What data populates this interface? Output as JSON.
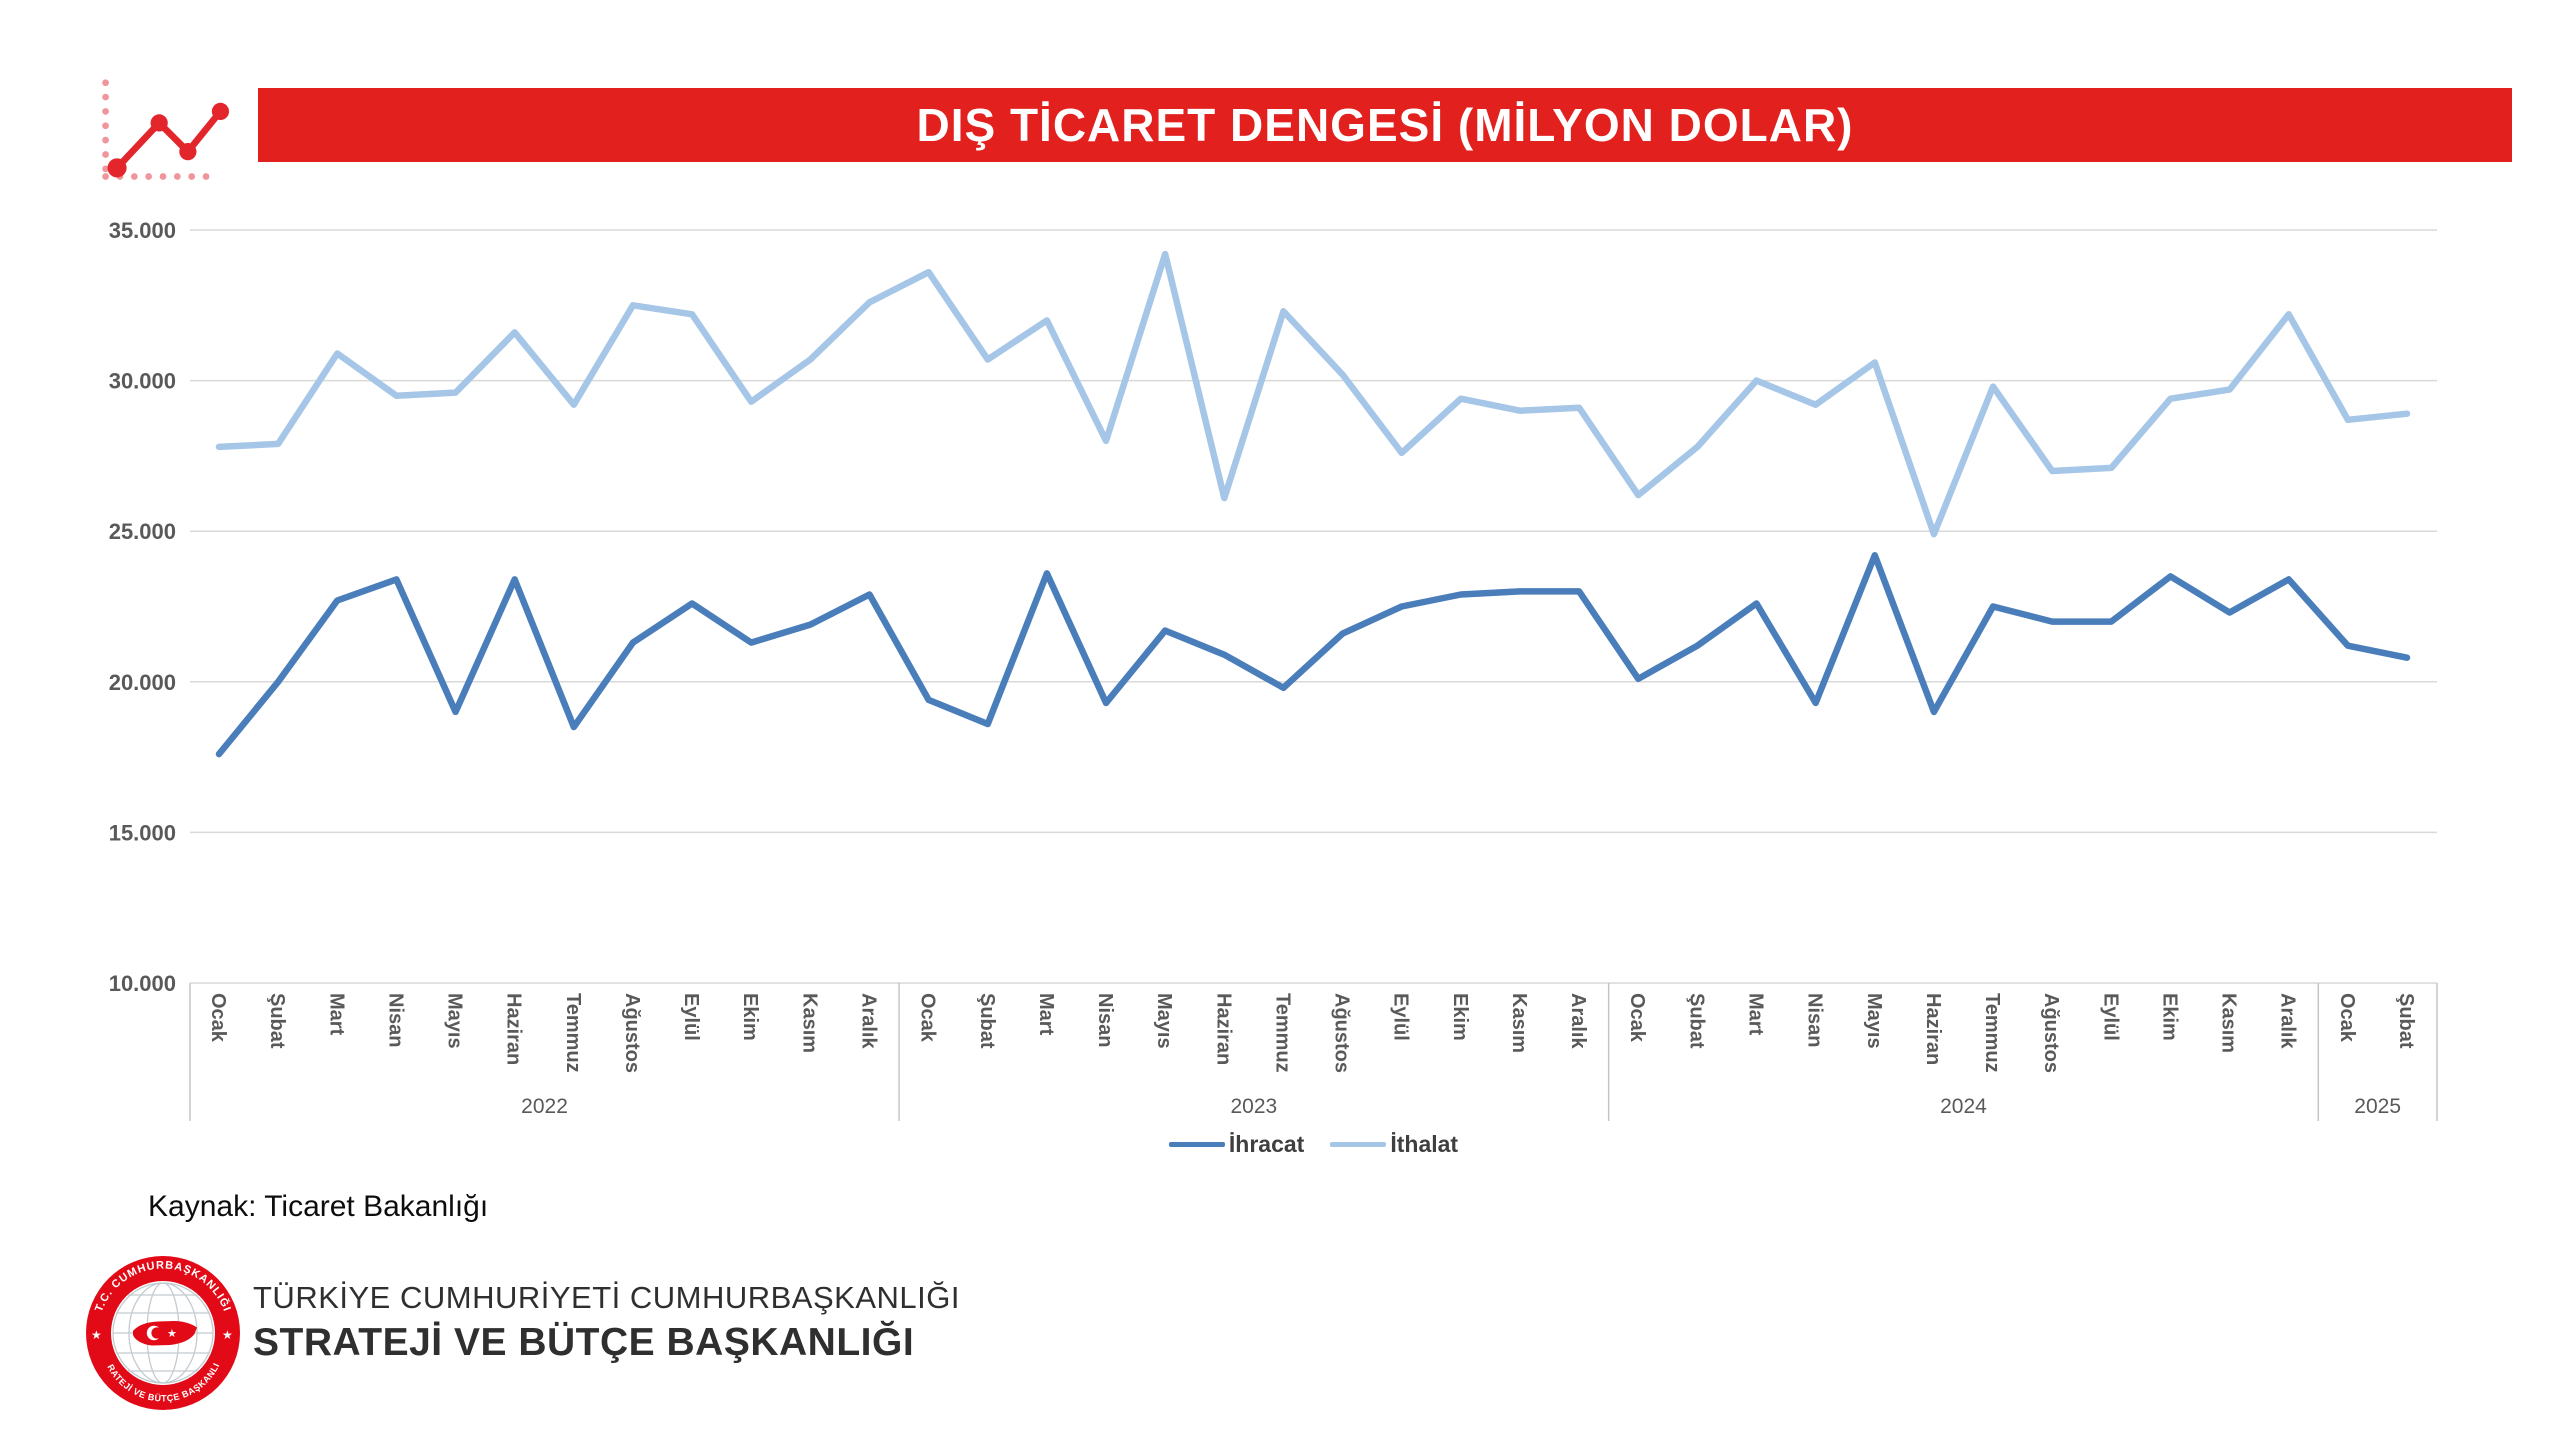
{
  "header": {
    "title": "DIŞ TİCARET DENGESİ (MİLYON DOLAR)",
    "banner_color": "#e2201d",
    "icon": {
      "name": "line-chart-logo-icon",
      "line_color": "#e2262c",
      "dot_color": "#f0959b"
    }
  },
  "chart_data": {
    "type": "line",
    "title": "DIŞ TİCARET DENGESİ (MİLYON DOLAR)",
    "unit": "milyon dolar",
    "grid": true,
    "legend_position": "bottom",
    "y_axis": {
      "min": 10000,
      "max": 35000,
      "step": 5000,
      "ticks": [
        {
          "label": "35.000",
          "value": 35000
        },
        {
          "label": "30.000",
          "value": 30000
        },
        {
          "label": "25.000",
          "value": 25000
        },
        {
          "label": "20.000",
          "value": 20000
        },
        {
          "label": "15.000",
          "value": 15000
        },
        {
          "label": "10.000",
          "value": 10000
        }
      ]
    },
    "years": [
      {
        "label": "2022",
        "months": [
          "Ocak",
          "Şubat",
          "Mart",
          "Nisan",
          "Mayıs",
          "Haziran",
          "Temmuz",
          "Ağustos",
          "Eylül",
          "Ekim",
          "Kasım",
          "Aralık"
        ]
      },
      {
        "label": "2023",
        "months": [
          "Ocak",
          "Şubat",
          "Mart",
          "Nisan",
          "Mayıs",
          "Haziran",
          "Temmuz",
          "Ağustos",
          "Eylül",
          "Ekim",
          "Kasım",
          "Aralık"
        ]
      },
      {
        "label": "2024",
        "months": [
          "Ocak",
          "Şubat",
          "Mart",
          "Nisan",
          "Mayıs",
          "Haziran",
          "Temmuz",
          "Ağustos",
          "Eylül",
          "Ekim",
          "Kasım",
          "Aralık"
        ]
      },
      {
        "label": "2025",
        "months": [
          "Ocak",
          "Şubat"
        ]
      }
    ],
    "series": [
      {
        "id": "ihracat",
        "name": "İhracat",
        "color": "#4a7ebb",
        "values": [
          17600,
          20000,
          22700,
          23400,
          19000,
          23400,
          18500,
          21300,
          22600,
          21300,
          21900,
          22900,
          19400,
          18600,
          23600,
          19300,
          21700,
          20900,
          19800,
          21600,
          22500,
          22900,
          23000,
          23000,
          20100,
          21200,
          22600,
          19300,
          24200,
          19000,
          22500,
          22000,
          22000,
          23500,
          22300,
          23400,
          21200,
          20800
        ]
      },
      {
        "id": "ithalat",
        "name": "İthalat",
        "color": "#a6c6e8",
        "values": [
          27800,
          27900,
          30900,
          29500,
          29600,
          31600,
          29200,
          32500,
          32200,
          29300,
          30700,
          32600,
          33600,
          30700,
          32000,
          28000,
          34200,
          26100,
          32300,
          30200,
          27600,
          29400,
          29000,
          29100,
          26200,
          27800,
          30000,
          29200,
          30600,
          24900,
          29800,
          27000,
          27100,
          29400,
          29700,
          32200,
          28700,
          28900
        ]
      }
    ]
  },
  "source": {
    "label": "Kaynak: Ticaret Bakanlığı"
  },
  "footer": {
    "org_line1": "TÜRKİYE CUMHURİYETİ CUMHURBAŞKANLIĞI",
    "org_line2": "STRATEJİ VE BÜTÇE BAŞKANLIĞI",
    "emblem": {
      "ring_color": "#e30a17",
      "map_color": "#e30a17",
      "top_text": "T.C. CUMHURBAŞKANLIĞI",
      "bottom_text": "STRATEJİ VE BÜTÇE BAŞKANLIĞI",
      "star": "★"
    }
  }
}
